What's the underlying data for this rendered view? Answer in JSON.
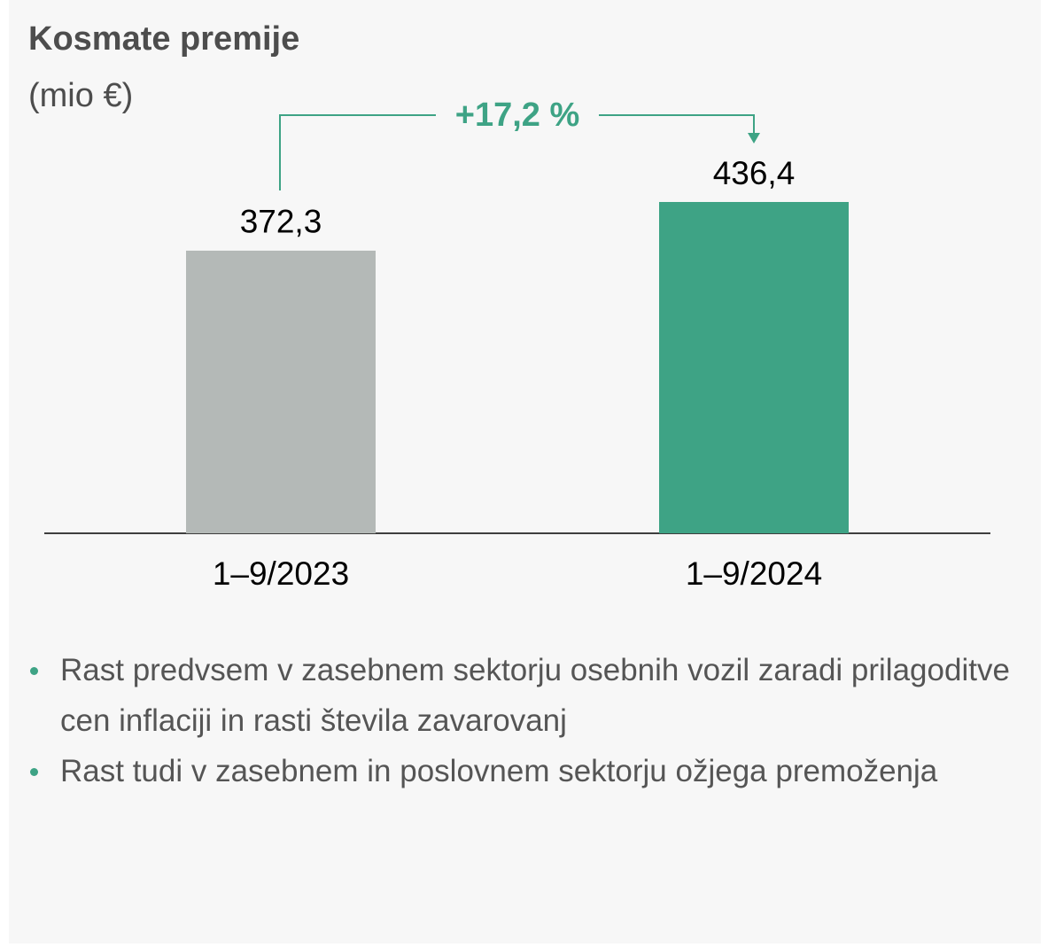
{
  "chart_data": {
    "type": "bar",
    "title": "Kosmate premije",
    "subtitle": "(mio €)",
    "categories": [
      "1–9/2023",
      "1–9/2024"
    ],
    "values": [
      372.3,
      436.4
    ],
    "value_labels": [
      "372,3",
      "436,4"
    ],
    "colors": [
      "#b4b9b7",
      "#3ea385"
    ],
    "annotation": "+17,2 %"
  },
  "bullets": [
    "Rast predvsem v zasebnem sektorju osebnih vozil zaradi prilagoditve cen inflaciji in rasti števila zavarovanj",
    "Rast tudi v zasebnem in poslovnem sektorju ožjega premoženja"
  ]
}
